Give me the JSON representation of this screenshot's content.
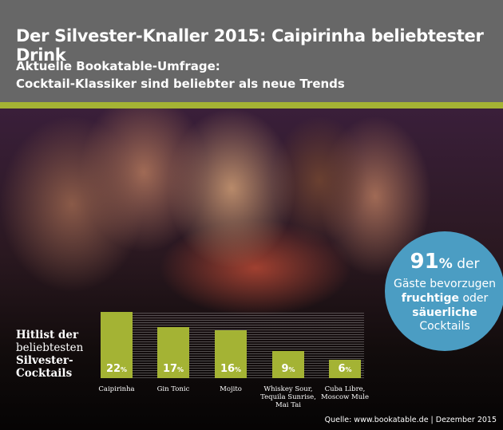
{
  "header": {
    "title": "Der Silvester-Knaller 2015: Caipirinha beliebtester Drink",
    "subtitle_1": "Aktuelle Bookatable-Umfrage:",
    "subtitle_2": "Cocktail-Klassiker sind beliebter als neue Trends"
  },
  "callout": {
    "value": "91",
    "unit": "%",
    "text_1": "der",
    "text_2": "Gäste bevorzugen",
    "text_3": "fruchtige",
    "text_4": "oder",
    "text_5": "säuerliche",
    "text_6": "Cocktails"
  },
  "colors": {
    "header": "#676767",
    "accent": "#a4b334",
    "callout": "#4b9dc3"
  },
  "chart_data": {
    "type": "bar",
    "title": "Hitlist der beliebtesten Silvester-Cocktails",
    "title_lines": [
      "Hitlist der",
      "beliebtesten",
      "Silvester-",
      "Cocktails"
    ],
    "categories": [
      "Caipirinha",
      "Gin Tonic",
      "Mojito",
      "Whiskey Sour, Tequila Sunrise, Mai Tai",
      "Cuba Libre, Moscow Mule"
    ],
    "values": [
      22,
      17,
      16,
      9,
      6
    ],
    "unit": "%"
  },
  "source": "Quelle: www.bookatable.de | Dezember 2015"
}
